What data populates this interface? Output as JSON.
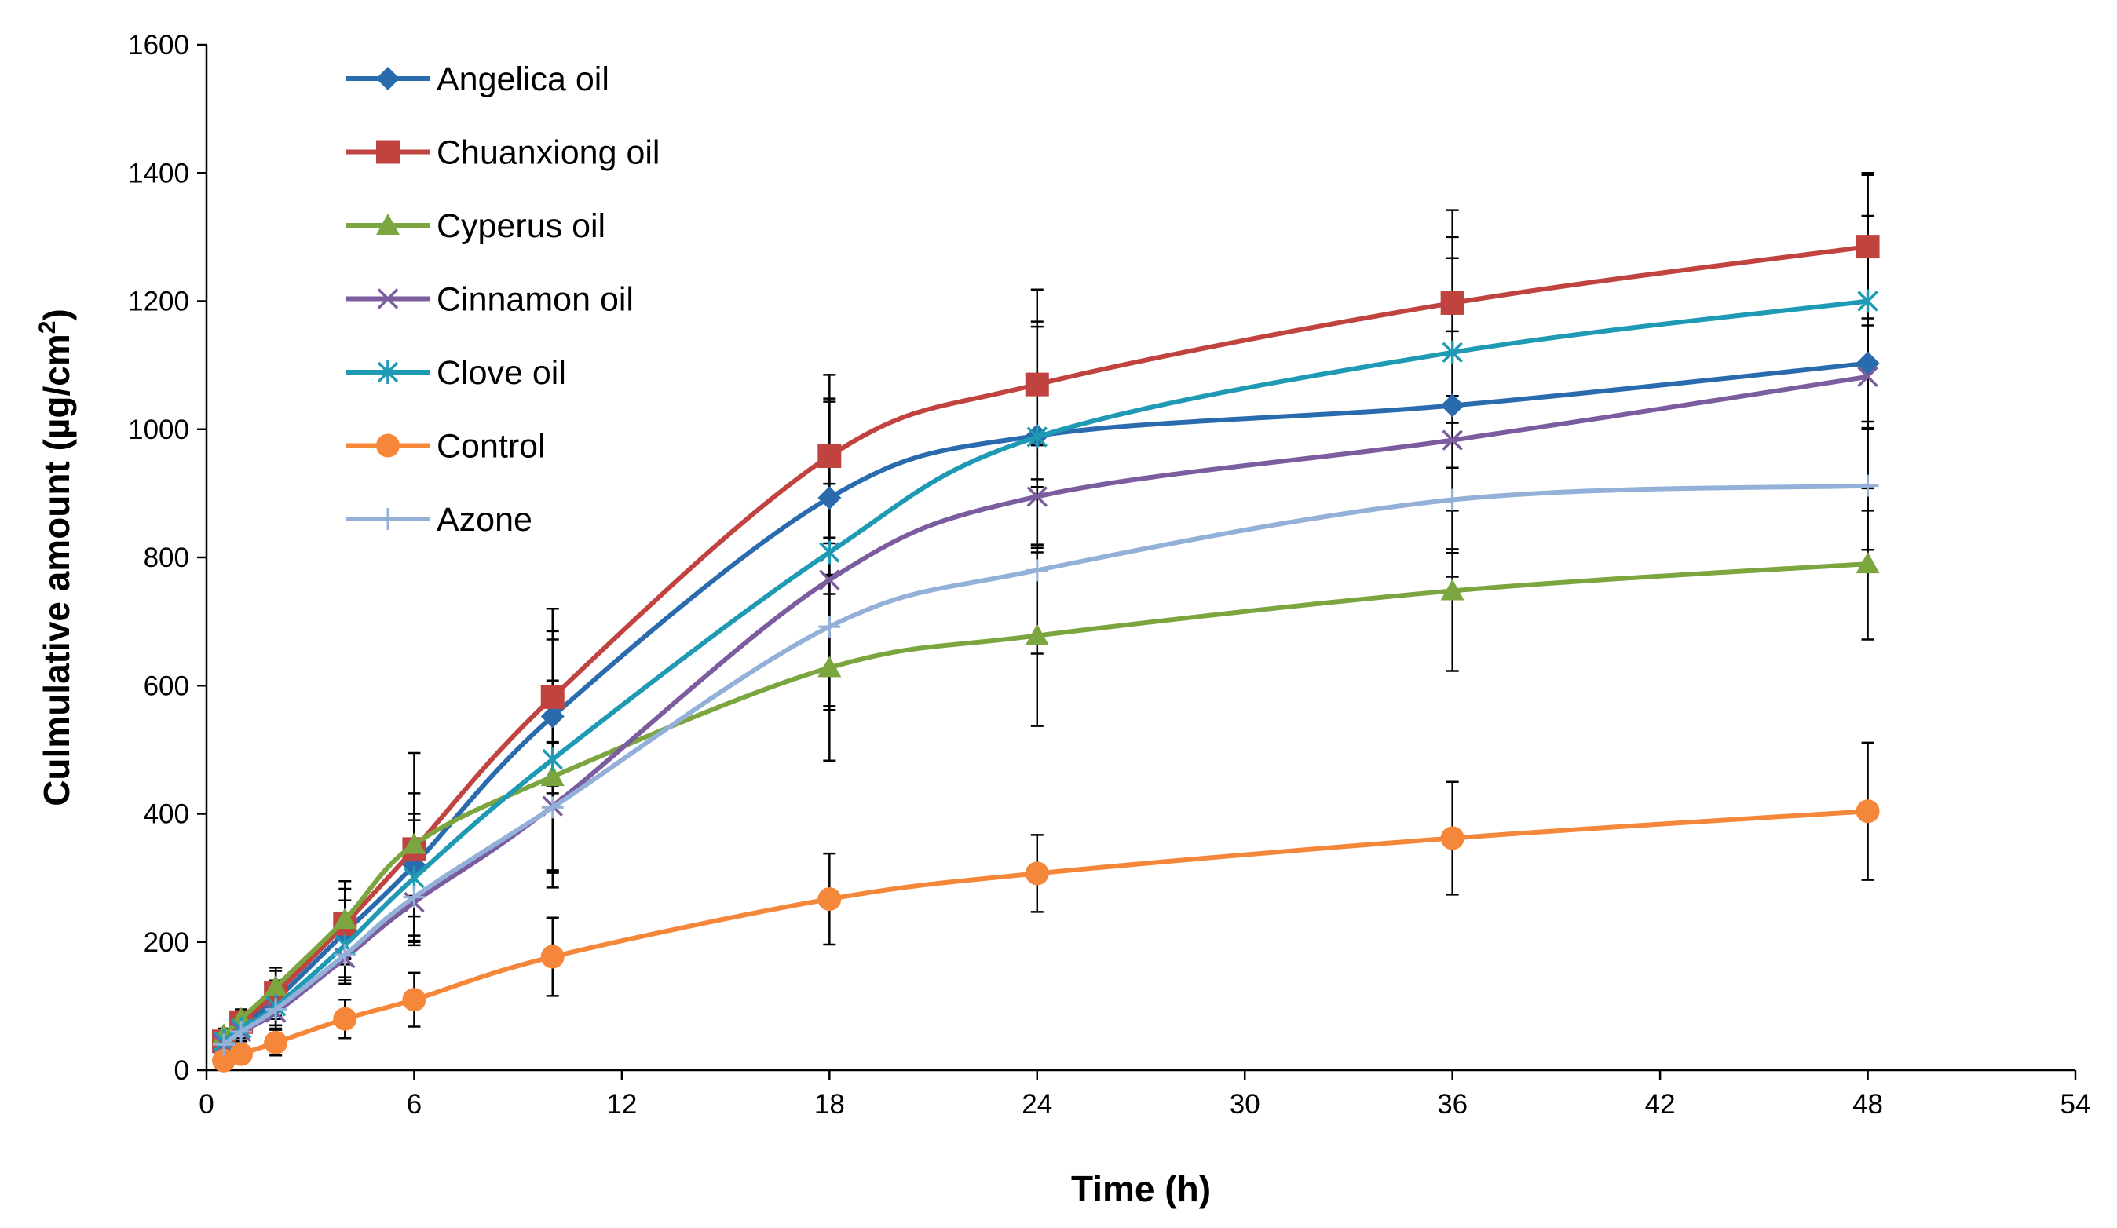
{
  "chart_data": {
    "type": "line",
    "title": "",
    "xlabel": "Time (h)",
    "ylabel": "Culmulative amount (µg/cm",
    "ylabel_sup": "2",
    "ylabel_close": ")",
    "xlim": [
      0,
      54
    ],
    "ylim": [
      0,
      1600
    ],
    "xticks": [
      0,
      6,
      12,
      18,
      24,
      30,
      36,
      42,
      48,
      54
    ],
    "yticks": [
      0,
      200,
      400,
      600,
      800,
      1000,
      1200,
      1400,
      1600
    ],
    "grid": false,
    "legend_position": "top-left",
    "x": [
      0.5,
      1,
      2,
      4,
      6,
      10,
      18,
      24,
      36,
      48
    ],
    "series": [
      {
        "name": "Angelica oil",
        "color": "#2A6BAE",
        "marker": "diamond",
        "values": [
          45,
          70,
          110,
          215,
          320,
          552,
          893,
          990,
          1037,
          1103
        ],
        "errors": [
          10,
          15,
          30,
          50,
          80,
          120,
          150,
          170,
          230,
          230
        ]
      },
      {
        "name": "Chuanxiong oil",
        "color": "#C0433F",
        "marker": "square",
        "values": [
          45,
          75,
          120,
          228,
          345,
          582,
          958,
          1070,
          1197,
          1285
        ],
        "errors": [
          10,
          15,
          35,
          55,
          150,
          138,
          127,
          148,
          145,
          112
        ]
      },
      {
        "name": "Cyperus oil",
        "color": "#7BA53E",
        "marker": "triangle",
        "values": [
          55,
          80,
          130,
          235,
          352,
          458,
          628,
          678,
          748,
          790
        ],
        "errors": [
          10,
          15,
          30,
          60,
          80,
          150,
          145,
          141,
          125,
          118
        ]
      },
      {
        "name": "Cinnamon oil",
        "color": "#7B5C9E",
        "marker": "x",
        "values": [
          40,
          60,
          90,
          175,
          262,
          412,
          765,
          895,
          983,
          1082
        ],
        "errors": [
          10,
          15,
          25,
          40,
          60,
          100,
          150,
          80,
          170,
          80
        ]
      },
      {
        "name": "Clove oil",
        "color": "#1F9AB4",
        "marker": "star",
        "values": [
          45,
          65,
          100,
          195,
          300,
          485,
          808,
          988,
          1120,
          1200
        ],
        "errors": [
          10,
          15,
          30,
          50,
          90,
          200,
          240,
          180,
          180,
          200
        ]
      },
      {
        "name": "Control",
        "color": "#F5873A",
        "marker": "circle",
        "values": [
          15,
          25,
          43,
          80,
          110,
          177,
          267,
          307,
          362,
          404
        ],
        "errors": [
          5,
          10,
          20,
          30,
          42,
          61,
          71,
          60,
          88,
          107
        ]
      },
      {
        "name": "Azone",
        "color": "#93B0D8",
        "marker": "plus",
        "values": [
          40,
          60,
          95,
          180,
          270,
          410,
          692,
          780,
          890,
          912
        ],
        "errors": [
          10,
          15,
          25,
          40,
          70,
          100,
          130,
          130,
          120,
          100
        ]
      }
    ]
  }
}
